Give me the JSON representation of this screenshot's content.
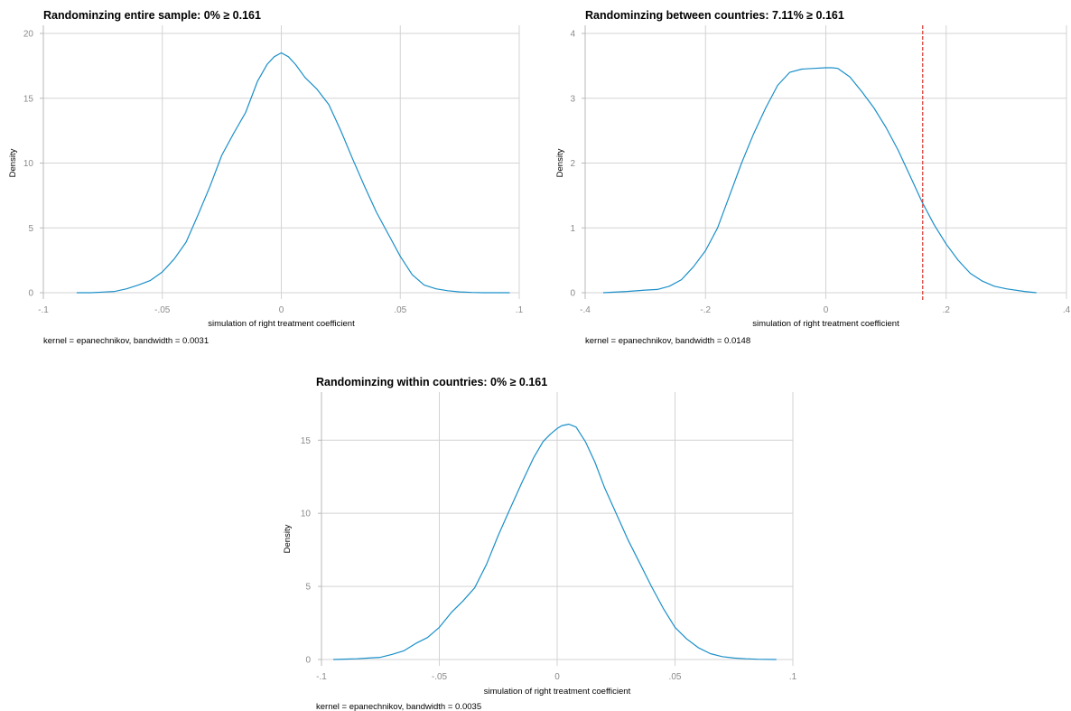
{
  "colors": {
    "density": "#1a8fc9",
    "reference": "#d9342b",
    "grid": "#d3d3d3",
    "tick_text": "#8a8a8a"
  },
  "chart_data": [
    {
      "type": "line",
      "title": "Randominzing entire sample: 0% ≥ 0.161",
      "xlabel": "simulation of right treatment coefficient",
      "ylabel": "Density",
      "note": "kernel = epanechnikov, bandwidth = 0.0031",
      "xlim": [
        -0.1,
        0.1
      ],
      "ylim": [
        0,
        20
      ],
      "xticks": [
        -0.1,
        -0.05,
        0,
        0.05,
        0.1
      ],
      "xtick_labels": [
        "-.1",
        "-.05",
        "0",
        ".05",
        ".1"
      ],
      "yticks": [
        0,
        5,
        10,
        15,
        20
      ],
      "ytick_labels": [
        "0",
        "5",
        "10",
        "15",
        "20"
      ],
      "grid": true,
      "reference_line": null,
      "series": [
        {
          "x": [
            -0.086,
            -0.08,
            -0.075,
            -0.07,
            -0.065,
            -0.06,
            -0.055,
            -0.05,
            -0.045,
            -0.04,
            -0.035,
            -0.03,
            -0.025,
            -0.02,
            -0.015,
            -0.01,
            -0.006,
            -0.003,
            0,
            0.003,
            0.006,
            0.01,
            0.015,
            0.02,
            0.025,
            0.03,
            0.035,
            0.04,
            0.045,
            0.05,
            0.055,
            0.06,
            0.065,
            0.07,
            0.075,
            0.08,
            0.085,
            0.09,
            0.096
          ],
          "y": [
            0,
            0,
            0.05,
            0.1,
            0.3,
            0.6,
            0.95,
            1.6,
            2.6,
            3.9,
            6,
            8.2,
            10.6,
            12.3,
            13.9,
            16.3,
            17.6,
            18.2,
            18.5,
            18.2,
            17.6,
            16.6,
            15.7,
            14.5,
            12.5,
            10.3,
            8.2,
            6.2,
            4.5,
            2.8,
            1.4,
            0.6,
            0.3,
            0.15,
            0.06,
            0.02,
            0,
            0,
            0
          ]
        }
      ]
    },
    {
      "type": "line",
      "title": "Randominzing between countries: 7.11% ≥ 0.161",
      "xlabel": "simulation of right treatment coefficient",
      "ylabel": "Density",
      "note": "kernel = epanechnikov, bandwidth = 0.0148",
      "xlim": [
        -0.4,
        0.4
      ],
      "ylim": [
        0,
        4
      ],
      "xticks": [
        -0.4,
        -0.2,
        0,
        0.2,
        0.4
      ],
      "xtick_labels": [
        "-.4",
        "-.2",
        "0",
        ".2",
        ".4"
      ],
      "yticks": [
        0,
        1,
        2,
        3,
        4
      ],
      "ytick_labels": [
        "0",
        "1",
        "2",
        "3",
        "4"
      ],
      "grid": true,
      "reference_line": 0.161,
      "series": [
        {
          "x": [
            -0.37,
            -0.33,
            -0.3,
            -0.28,
            -0.26,
            -0.24,
            -0.22,
            -0.2,
            -0.18,
            -0.16,
            -0.14,
            -0.12,
            -0.1,
            -0.08,
            -0.06,
            -0.04,
            -0.02,
            0,
            0.01,
            0.02,
            0.04,
            0.06,
            0.08,
            0.1,
            0.12,
            0.14,
            0.16,
            0.18,
            0.2,
            0.22,
            0.24,
            0.26,
            0.28,
            0.3,
            0.33,
            0.35
          ],
          "y": [
            0,
            0.02,
            0.04,
            0.05,
            0.1,
            0.2,
            0.4,
            0.65,
            1.0,
            1.5,
            2.0,
            2.45,
            2.85,
            3.2,
            3.4,
            3.45,
            3.46,
            3.47,
            3.47,
            3.46,
            3.33,
            3.1,
            2.85,
            2.55,
            2.2,
            1.8,
            1.4,
            1.05,
            0.75,
            0.5,
            0.3,
            0.18,
            0.1,
            0.06,
            0.02,
            0
          ]
        }
      ]
    },
    {
      "type": "line",
      "title": "Randominzing within countries: 0% ≥ 0.161",
      "xlabel": "simulation of right treatment coefficient",
      "ylabel": "Density",
      "note": "kernel = epanechnikov, bandwidth = 0.0035",
      "xlim": [
        -0.1,
        0.1
      ],
      "ylim": [
        0,
        16.5
      ],
      "xticks": [
        -0.1,
        -0.05,
        0,
        0.05,
        0.1
      ],
      "xtick_labels": [
        "-.1",
        "-.05",
        "0",
        ".05",
        ".1"
      ],
      "yticks": [
        0,
        5,
        10,
        15
      ],
      "ytick_labels": [
        "0",
        "5",
        "10",
        "15"
      ],
      "grid": true,
      "reference_line": null,
      "series": [
        {
          "x": [
            -0.095,
            -0.085,
            -0.08,
            -0.075,
            -0.07,
            -0.065,
            -0.06,
            -0.055,
            -0.05,
            -0.045,
            -0.04,
            -0.035,
            -0.03,
            -0.025,
            -0.02,
            -0.015,
            -0.01,
            -0.006,
            -0.003,
            0,
            0.002,
            0.005,
            0.008,
            0.012,
            0.016,
            0.02,
            0.025,
            0.03,
            0.035,
            0.04,
            0.045,
            0.05,
            0.055,
            0.06,
            0.065,
            0.07,
            0.075,
            0.08,
            0.085,
            0.093
          ],
          "y": [
            0,
            0.05,
            0.1,
            0.15,
            0.35,
            0.6,
            1.1,
            1.5,
            2.2,
            3.2,
            4.0,
            4.9,
            6.5,
            8.5,
            10.3,
            12.1,
            13.8,
            14.9,
            15.4,
            15.8,
            16.0,
            16.1,
            15.9,
            14.9,
            13.5,
            11.8,
            10.0,
            8.2,
            6.6,
            5.0,
            3.5,
            2.2,
            1.4,
            0.8,
            0.4,
            0.2,
            0.1,
            0.05,
            0.02,
            0
          ]
        }
      ]
    }
  ]
}
